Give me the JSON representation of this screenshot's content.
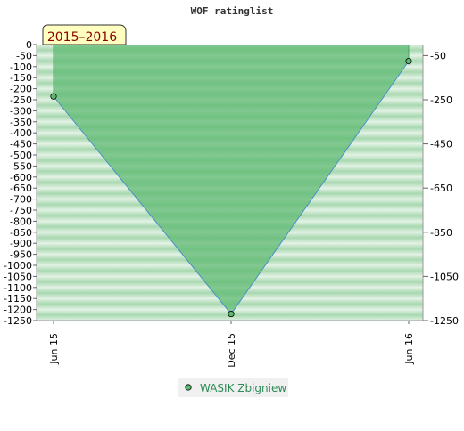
{
  "chart_data": {
    "type": "area",
    "title": "WOF ratinglist",
    "annotation": "2015–2016",
    "x": [
      "Jun 15",
      "Dec 15",
      "Jun 16"
    ],
    "series": [
      {
        "name": "WASIK Zbigniew",
        "values": [
          -235,
          -1220,
          -75
        ]
      }
    ],
    "left_axis": {
      "ylim": [
        -1250,
        0
      ],
      "ticks": [
        0,
        -50,
        -100,
        -150,
        -200,
        -250,
        -300,
        -350,
        -400,
        -450,
        -500,
        -550,
        -600,
        -650,
        -700,
        -750,
        -800,
        -850,
        -900,
        -950,
        -1000,
        -1050,
        -1100,
        -1150,
        -1200,
        -1250
      ]
    },
    "right_axis": {
      "ylim": [
        -1250,
        0
      ],
      "ticks": [
        -50,
        -250,
        -450,
        -650,
        -850,
        -1050,
        -1250
      ]
    },
    "legend_position": "bottom-center",
    "grid": true,
    "colors": {
      "area_fill": "#5cb870",
      "area_line": "#4a90c8",
      "marker": "#5cb870",
      "band_dark": "#a8d8b0",
      "band_light": "#e2f2e4",
      "annotation_bg": "#ffffc0",
      "annotation_text": "#8b0000",
      "legend_text": "#2e8b57"
    }
  }
}
